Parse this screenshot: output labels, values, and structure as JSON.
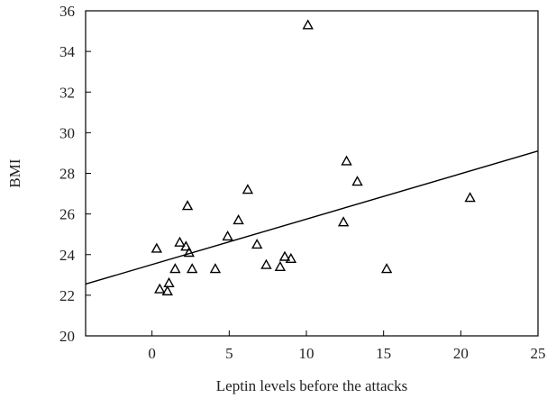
{
  "chart_data": {
    "type": "scatter",
    "xlabel": "Leptin levels before the attacks",
    "ylabel": "BMI",
    "xlim": [
      -4.3,
      25
    ],
    "ylim": [
      20,
      36
    ],
    "x_ticks": [
      0,
      5,
      10,
      15,
      20,
      25
    ],
    "y_ticks": [
      20,
      22,
      24,
      26,
      28,
      30,
      32,
      34,
      36
    ],
    "grid": false,
    "legend": "none",
    "marker": "triangle-open",
    "colors": {
      "marker": "#000000",
      "trendline": "#000000",
      "axis": "#000000"
    },
    "series": [
      {
        "points": [
          {
            "x": 0.3,
            "y": 24.3
          },
          {
            "x": 0.5,
            "y": 22.3
          },
          {
            "x": 1.0,
            "y": 22.2
          },
          {
            "x": 1.1,
            "y": 22.6
          },
          {
            "x": 1.5,
            "y": 23.3
          },
          {
            "x": 1.8,
            "y": 24.6
          },
          {
            "x": 2.2,
            "y": 24.4
          },
          {
            "x": 2.3,
            "y": 26.4
          },
          {
            "x": 2.4,
            "y": 24.1
          },
          {
            "x": 2.6,
            "y": 23.3
          },
          {
            "x": 4.1,
            "y": 23.3
          },
          {
            "x": 4.9,
            "y": 24.9
          },
          {
            "x": 5.6,
            "y": 25.7
          },
          {
            "x": 6.2,
            "y": 27.2
          },
          {
            "x": 6.8,
            "y": 24.5
          },
          {
            "x": 7.4,
            "y": 23.5
          },
          {
            "x": 8.3,
            "y": 23.4
          },
          {
            "x": 8.6,
            "y": 23.9
          },
          {
            "x": 9.0,
            "y": 23.8
          },
          {
            "x": 10.1,
            "y": 35.3
          },
          {
            "x": 12.4,
            "y": 25.6
          },
          {
            "x": 12.6,
            "y": 28.6
          },
          {
            "x": 13.3,
            "y": 27.6
          },
          {
            "x": 15.2,
            "y": 23.3
          },
          {
            "x": 20.6,
            "y": 26.8
          }
        ]
      }
    ],
    "trendline": {
      "x": [
        -4.3,
        25
      ],
      "y": [
        22.55,
        29.1
      ]
    }
  }
}
